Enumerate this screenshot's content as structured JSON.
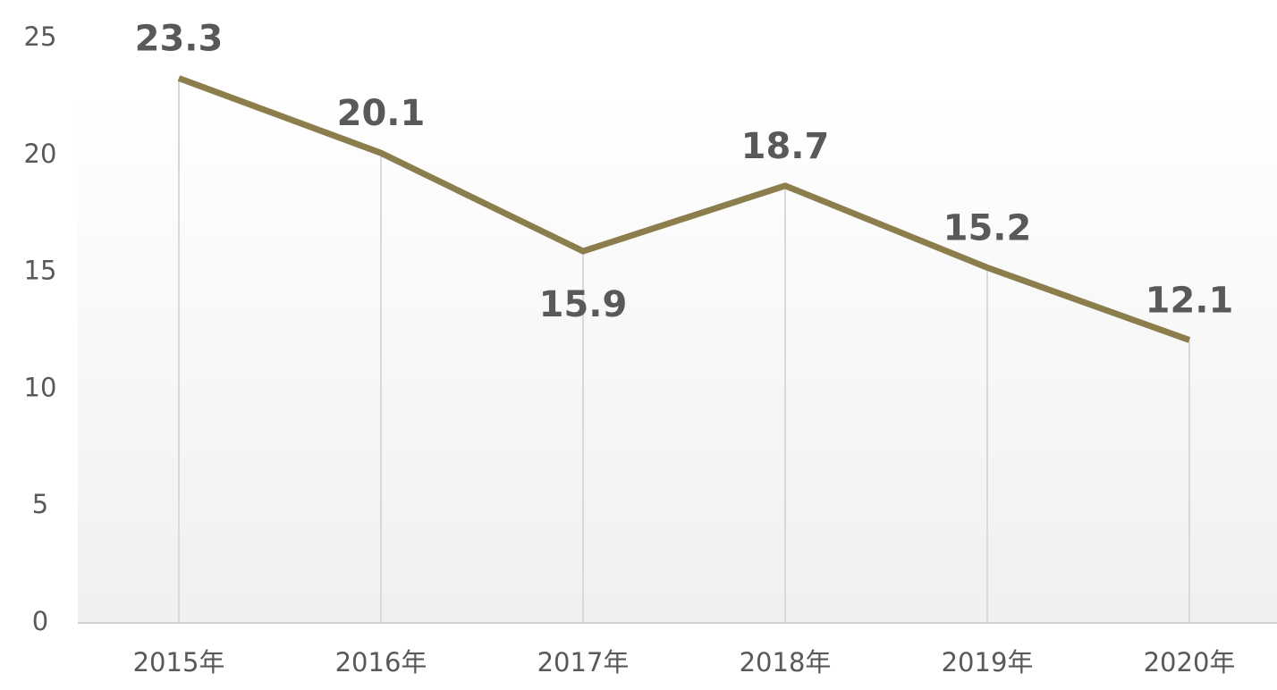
{
  "chart_data": {
    "type": "line",
    "categories": [
      "2015年",
      "2016年",
      "2017年",
      "2018年",
      "2019年",
      "2020年"
    ],
    "series": [
      {
        "values": [
          23.3,
          20.1,
          15.9,
          18.7,
          15.2,
          12.1
        ],
        "color": "#8b7e4c"
      }
    ],
    "ylim": [
      0,
      25
    ],
    "yticks": [
      0,
      5,
      10,
      15,
      20,
      25
    ],
    "drop_lines": true
  }
}
